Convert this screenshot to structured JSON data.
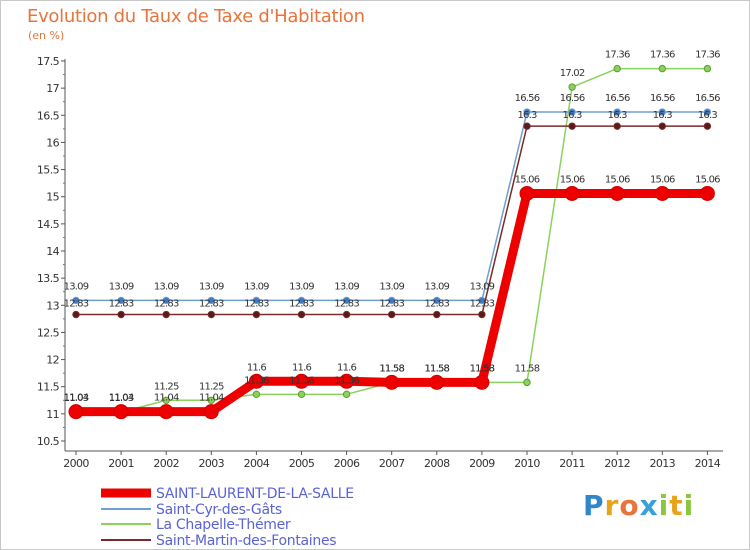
{
  "title": "Evolution du Taux de Taxe d'Habitation",
  "subtitle": "(en %)",
  "logo": {
    "text": "Proxiti",
    "letters": [
      "P",
      "r",
      "o",
      "x",
      "i",
      "t",
      "i"
    ]
  },
  "chart_data": {
    "type": "line",
    "x": [
      "2000",
      "2001",
      "2002",
      "2003",
      "2004",
      "2005",
      "2006",
      "2007",
      "2008",
      "2009",
      "2010",
      "2011",
      "2012",
      "2013",
      "2014"
    ],
    "ylim": [
      10.5,
      17.5
    ],
    "yticks": [
      "10.5",
      "11",
      "11.5",
      "12",
      "12.5",
      "13",
      "13.5",
      "14",
      "14.5",
      "15",
      "15.5",
      "16",
      "16.5",
      "17",
      "17.5"
    ],
    "grid": false,
    "legend_position": "bottom-left",
    "series": [
      {
        "name": "SAINT-LAURENT-DE-LA-SALLE",
        "color": "#ee0000",
        "values": [
          11.04,
          11.04,
          11.04,
          11.04,
          11.6,
          11.6,
          11.6,
          11.58,
          11.58,
          11.58,
          15.06,
          15.06,
          15.06,
          15.06,
          15.06
        ],
        "labels": [
          "11.04",
          "11.04",
          "11.04",
          "11.04",
          "11.6",
          "11.6",
          "11.6",
          "11.58",
          "11.58",
          "11.58",
          "15.06",
          "15.06",
          "15.06",
          "15.06",
          "15.06"
        ]
      },
      {
        "name": "Saint-Cyr-des-Gâts",
        "color": "#6f9fd0",
        "values": [
          13.09,
          13.09,
          13.09,
          13.09,
          13.09,
          13.09,
          13.09,
          13.09,
          13.09,
          13.09,
          16.56,
          16.56,
          16.56,
          16.56,
          16.56
        ],
        "labels": [
          "13.09",
          "13.09",
          "13.09",
          "13.09",
          "13.09",
          "13.09",
          "13.09",
          "13.09",
          "13.09",
          "13.09",
          "16.56",
          "16.56",
          "16.56",
          "16.56",
          "16.56"
        ]
      },
      {
        "name": "La Chapelle-Thémer",
        "color": "#8bd15e",
        "values": [
          11.03,
          11.03,
          11.25,
          11.25,
          11.36,
          11.36,
          11.36,
          11.58,
          11.58,
          11.58,
          11.58,
          17.02,
          17.36,
          17.36,
          17.36
        ],
        "labels": [
          "11.03",
          "11.03",
          "11.25",
          "11.25",
          "11.36",
          "11.36",
          "11.36",
          "11.58",
          "11.58",
          "11.58",
          "11.58",
          "17.02",
          "17.36",
          "17.36",
          "17.36"
        ]
      },
      {
        "name": "Saint-Martin-des-Fontaines",
        "color": "#7a2a2a",
        "values": [
          12.83,
          12.83,
          12.83,
          12.83,
          12.83,
          12.83,
          12.83,
          12.83,
          12.83,
          12.83,
          16.3,
          16.3,
          16.3,
          16.3,
          16.3
        ],
        "labels": [
          "12.83",
          "12.83",
          "12.83",
          "12.83",
          "12.83",
          "12.83",
          "12.83",
          "12.83",
          "12.83",
          "12.83",
          "16.3",
          "16.3",
          "16.3",
          "16.3",
          "16.3"
        ]
      }
    ]
  }
}
